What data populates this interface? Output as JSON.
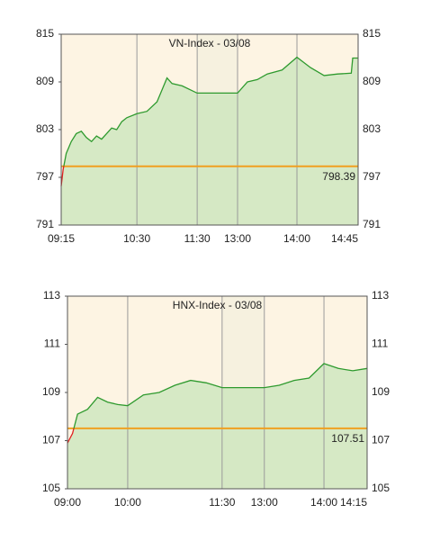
{
  "chart_data": [
    {
      "type": "line",
      "title": "VN-Index - 03/08",
      "x": [
        "09:15",
        "09:17",
        "09:20",
        "09:25",
        "09:30",
        "09:35",
        "09:40",
        "09:45",
        "09:50",
        "09:55",
        "10:00",
        "10:05",
        "10:10",
        "10:15",
        "10:20",
        "10:30",
        "10:40",
        "10:50",
        "10:55",
        "11:00",
        "11:05",
        "11:15",
        "11:30",
        "13:00",
        "13:10",
        "13:20",
        "13:30",
        "13:45",
        "14:00",
        "14:10",
        "14:20",
        "14:30",
        "14:40",
        "14:41",
        "14:45"
      ],
      "series": [
        {
          "color": "#2e9a2e",
          "values": [
            795.9,
            798.0,
            800.0,
            801.5,
            802.5,
            802.8,
            802.0,
            801.5,
            802.2,
            801.8,
            802.5,
            803.2,
            803.0,
            804.0,
            804.5,
            805.0,
            805.3,
            806.5,
            808.0,
            809.5,
            808.8,
            808.5,
            807.6,
            807.6,
            809.0,
            809.3,
            810.0,
            810.5,
            812.1,
            810.8,
            809.8,
            810.0,
            810.1,
            812.0,
            812.0
          ]
        }
      ],
      "reference_line": {
        "value": 798.39,
        "color": "#f0a020",
        "label_color": "#3a6fb5"
      },
      "ylim": [
        791,
        815
      ],
      "yticks": [
        791,
        797,
        803,
        809,
        815
      ],
      "xticks": [
        "09:15",
        "10:30",
        "11:30",
        "13:00",
        "14:00",
        "14:45"
      ]
    },
    {
      "type": "line",
      "title": "HNX-Index - 03/08",
      "x": [
        "09:00",
        "09:05",
        "09:10",
        "09:20",
        "09:30",
        "09:40",
        "09:50",
        "10:00",
        "10:15",
        "10:30",
        "10:45",
        "11:00",
        "11:15",
        "11:30",
        "13:00",
        "13:15",
        "13:30",
        "13:45",
        "14:00",
        "14:05",
        "14:10",
        "14:15"
      ],
      "series": [
        {
          "color": "#2e9a2e",
          "values": [
            106.9,
            107.3,
            108.1,
            108.3,
            108.8,
            108.6,
            108.5,
            108.45,
            108.9,
            109.0,
            109.3,
            109.5,
            109.4,
            109.2,
            109.2,
            109.3,
            109.5,
            109.6,
            110.2,
            110.0,
            109.9,
            110.0
          ]
        }
      ],
      "reference_line": {
        "value": 107.51,
        "color": "#f0a020",
        "label_color": "#3a6fb5"
      },
      "ylim": [
        105,
        113
      ],
      "yticks": [
        105,
        107,
        109,
        111,
        113
      ],
      "xticks": [
        "09:00",
        "10:00",
        "11:30",
        "13:00",
        "14:00",
        "14:15"
      ]
    }
  ]
}
